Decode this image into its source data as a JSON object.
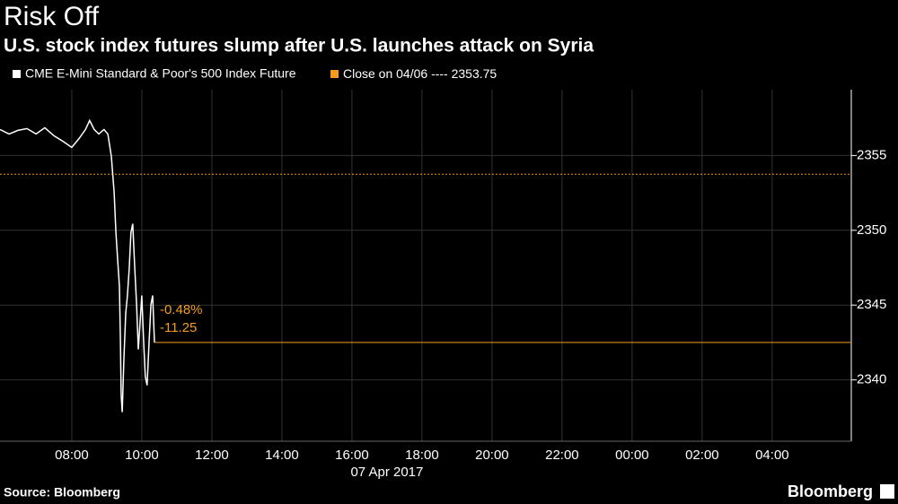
{
  "chart_data": {
    "type": "line",
    "title": "Risk Off",
    "subtitle": "U.S. stock index futures slump after U.S. launches attack on Syria",
    "x": [
      5.95,
      6.21,
      6.46,
      6.72,
      6.98,
      7.23,
      7.49,
      7.74,
      8.0,
      8.21,
      8.39,
      8.51,
      8.64,
      8.77,
      8.92,
      9.03,
      9.13,
      9.21,
      9.26,
      9.31,
      9.36,
      9.39,
      9.41,
      9.44,
      9.49,
      9.54,
      9.59,
      9.64,
      9.69,
      9.74,
      9.8,
      9.85,
      9.9,
      9.95,
      10.0,
      10.05,
      10.1,
      10.15,
      10.21,
      10.26,
      10.31,
      10.36
    ],
    "series": [
      {
        "name": "CME E-Mini Standard & Poor's 500 Index Future",
        "color": "#ffffff",
        "values": [
          2356.74,
          2356.44,
          2356.68,
          2356.8,
          2356.44,
          2356.86,
          2356.32,
          2355.96,
          2355.54,
          2356.14,
          2356.74,
          2357.34,
          2356.74,
          2356.44,
          2356.74,
          2356.44,
          2354.94,
          2352.54,
          2349.84,
          2348.04,
          2346.24,
          2342.64,
          2339.04,
          2337.84,
          2341.44,
          2344.44,
          2345.64,
          2347.44,
          2349.84,
          2350.44,
          2347.44,
          2345.04,
          2342.04,
          2343.84,
          2345.64,
          2342.64,
          2340.24,
          2339.64,
          2342.64,
          2345.04,
          2345.64,
          2342.5
        ]
      }
    ],
    "reference_line": {
      "label": "Close on 04/06 ----",
      "value": 2353.75,
      "color": "#f39c1f"
    },
    "last_line": {
      "value": 2342.5,
      "labels": [
        "-0.48%",
        "-11.25"
      ],
      "color": "#f39c1f"
    },
    "xlim": [
      5.95,
      30.26
    ],
    "xticks": [
      {
        "value": 8,
        "label": "08:00"
      },
      {
        "value": 10,
        "label": "10:00"
      },
      {
        "value": 12,
        "label": "12:00"
      },
      {
        "value": 14,
        "label": "14:00"
      },
      {
        "value": 16,
        "label": "16:00"
      },
      {
        "value": 18,
        "label": "18:00"
      },
      {
        "value": 20,
        "label": "20:00"
      },
      {
        "value": 22,
        "label": "22:00"
      },
      {
        "value": 24,
        "label": "00:00"
      },
      {
        "value": 26,
        "label": "02:00"
      },
      {
        "value": 28,
        "label": "04:00"
      }
    ],
    "date_label": "07 Apr 2017",
    "ylim": [
      2335.9,
      2359.4
    ],
    "yticks": [
      2340,
      2345,
      2350,
      2355
    ],
    "grid": true,
    "source": "Source: Bloomberg",
    "brand": "Bloomberg"
  }
}
